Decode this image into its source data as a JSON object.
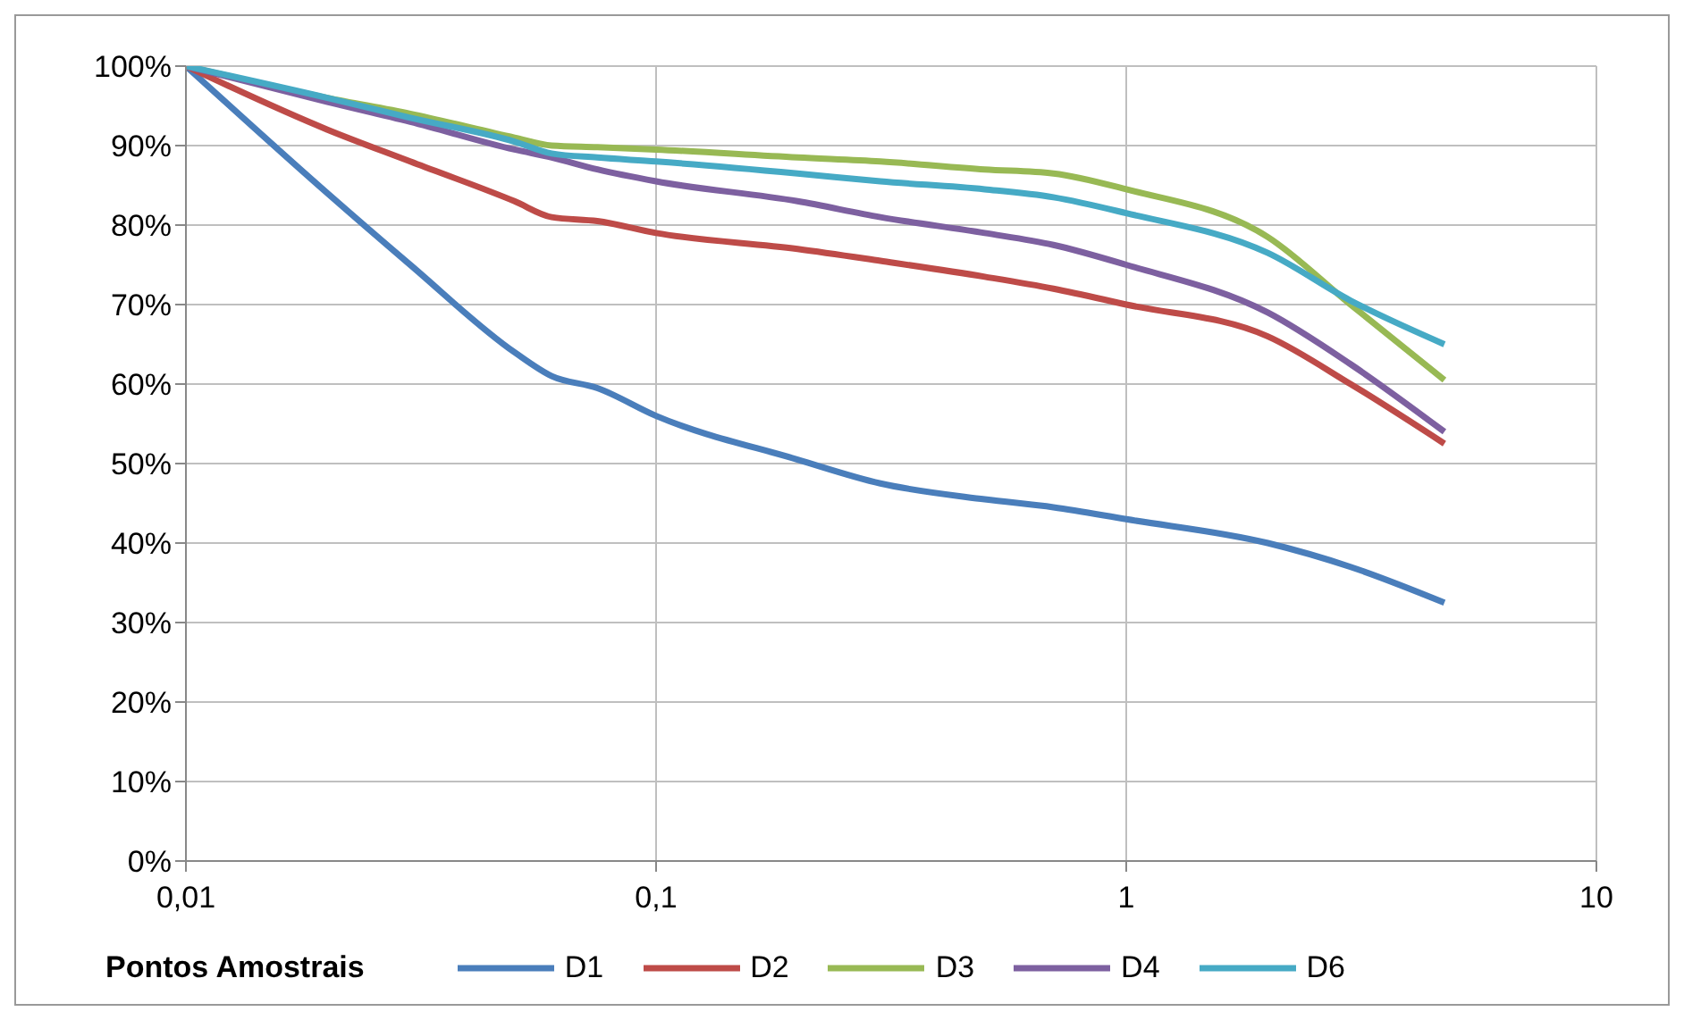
{
  "chart_data": {
    "type": "line",
    "legend_title": "Pontos Amostrais",
    "log": "x",
    "x": [
      0.01,
      0.02,
      0.03,
      0.05,
      0.06,
      0.075,
      0.1,
      0.2,
      0.3,
      0.5,
      0.7,
      1,
      2,
      3,
      4.75
    ],
    "series": [
      {
        "name": "D1",
        "color": "#4a7ebb",
        "values": [
          100,
          84,
          75,
          64,
          61,
          59.5,
          56,
          50.5,
          47.5,
          45.5,
          44.5,
          43,
          40,
          37,
          32.5
        ]
      },
      {
        "name": "D2",
        "color": "#be4b48",
        "values": [
          100,
          92,
          88,
          83,
          81,
          80.5,
          79,
          77,
          75.5,
          73.5,
          72,
          70,
          66,
          60,
          52.5
        ]
      },
      {
        "name": "D3",
        "color": "#98b954",
        "values": [
          100,
          96,
          94,
          91,
          90,
          89.8,
          89.5,
          88.5,
          88,
          87,
          86.5,
          84.5,
          78.5,
          70,
          60.5
        ]
      },
      {
        "name": "D4",
        "color": "#7d60a0",
        "values": [
          100,
          95.5,
          93,
          89.5,
          88.5,
          87,
          85.5,
          83,
          81,
          79,
          77.5,
          75,
          69,
          62.5,
          54
        ]
      },
      {
        "name": "D6",
        "color": "#46aac5",
        "values": [
          100,
          96,
          93.5,
          90.5,
          89,
          88.5,
          88,
          86.5,
          85.5,
          84.5,
          83.5,
          81.5,
          76.5,
          70.5,
          65
        ]
      }
    ],
    "xlim": [
      0.01,
      10
    ],
    "xticks": [
      {
        "value": 0.01,
        "label": "0,01"
      },
      {
        "value": 0.1,
        "label": "0,1"
      },
      {
        "value": 1,
        "label": "1"
      },
      {
        "value": 10,
        "label": "10"
      }
    ],
    "ylim": [
      0,
      100
    ],
    "yticks": [
      {
        "value": 0,
        "label": "0%"
      },
      {
        "value": 10,
        "label": "10%"
      },
      {
        "value": 20,
        "label": "20%"
      },
      {
        "value": 30,
        "label": "30%"
      },
      {
        "value": 40,
        "label": "40%"
      },
      {
        "value": 50,
        "label": "50%"
      },
      {
        "value": 60,
        "label": "60%"
      },
      {
        "value": 70,
        "label": "70%"
      },
      {
        "value": 80,
        "label": "80%"
      },
      {
        "value": 90,
        "label": "90%"
      },
      {
        "value": 100,
        "label": "100%"
      }
    ],
    "grid": true,
    "legend": "bottom",
    "marker": "none",
    "line_style": "solid"
  }
}
